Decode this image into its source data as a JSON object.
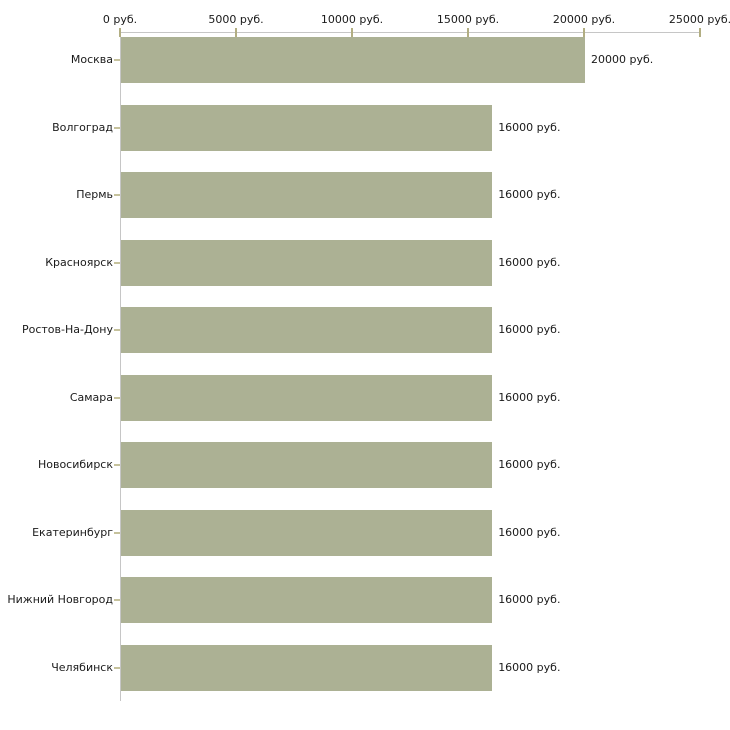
{
  "chart_data": {
    "type": "bar",
    "orientation": "horizontal",
    "title": "",
    "xlabel": "",
    "ylabel": "",
    "unit": "руб.",
    "categories": [
      "Москва",
      "Волгоград",
      "Пермь",
      "Красноярск",
      "Ростов-На-Дону",
      "Самара",
      "Новосибирск",
      "Екатеринбург",
      "Нижний Новгород",
      "Челябинск"
    ],
    "values": [
      20000,
      16000,
      16000,
      16000,
      16000,
      16000,
      16000,
      16000,
      16000,
      16000
    ],
    "value_labels": [
      "20000 руб.",
      "16000 руб.",
      "16000 руб.",
      "16000 руб.",
      "16000 руб.",
      "16000 руб.",
      "16000 руб.",
      "16000 руб.",
      "16000 руб.",
      "16000 руб."
    ],
    "x_tick_values": [
      0,
      5000,
      10000,
      15000,
      20000,
      25000
    ],
    "x_tick_labels": [
      "0 руб.",
      "5000 руб.",
      "10000 руб.",
      "15000 руб.",
      "20000 руб.",
      "25000 руб."
    ],
    "xlim": [
      0,
      25000
    ],
    "grid": false,
    "legend": false,
    "colors": {
      "bar": "#acb194",
      "axis_line": "#c6c6c6",
      "axis_tick": "#b2ae82",
      "category_tick": "#c6c29c",
      "text": "#1a1a1a",
      "background": "#ffffff"
    }
  }
}
